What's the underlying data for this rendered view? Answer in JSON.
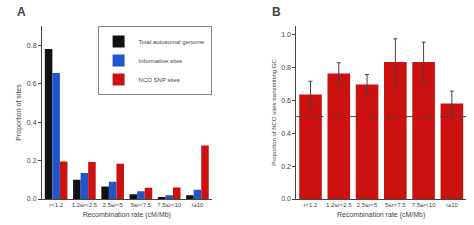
{
  "chart_data": [
    {
      "type": "bar",
      "annotations": [
        "A"
      ],
      "categories": [
        "r<1.2",
        "1.2≤r<2.5",
        "2.5≤r<5",
        "5≤r<7.5",
        "7.5≤r<10",
        "r≥10"
      ],
      "series": [
        {
          "name": "Total autosomal genome",
          "color": "#111111",
          "values": [
            0.78,
            0.1,
            0.065,
            0.025,
            0.01,
            0.02
          ]
        },
        {
          "name": "Informative sites",
          "color": "#2255cc",
          "values": [
            0.655,
            0.135,
            0.09,
            0.04,
            0.02,
            0.048
          ]
        },
        {
          "name": "NCO SNP sites",
          "color": "#cc1111",
          "values": [
            0.195,
            0.193,
            0.183,
            0.058,
            0.06,
            0.278
          ]
        }
      ],
      "xlabel": "Recombination rate (cM/Mb)",
      "ylabel": "Proportion of sites",
      "ylim": [
        0,
        0.9
      ],
      "yticks": [
        {
          "value": 0.0,
          "label": "0.0"
        },
        0.2,
        0.4,
        0.6,
        0.8
      ],
      "legend": "upper right",
      "grid": false
    },
    {
      "type": "bar",
      "annotations": [
        "B"
      ],
      "categories": [
        "r<1.2",
        "1.2≤r<2.5",
        "2.5≤r<5",
        "5≤r<7.5",
        "7.5≤r<10",
        "r≥10"
      ],
      "values": [
        0.635,
        0.762,
        0.695,
        0.832,
        0.832,
        0.58
      ],
      "errors": [
        0.08,
        0.065,
        0.06,
        0.14,
        0.12,
        0.075
      ],
      "color": "#cc1111",
      "hline": 0.5,
      "xlabel": "Recombination rate (cM/Mb)",
      "ylabel": "Proportion of NCO sites transmitting GC",
      "ylim": [
        0.0,
        1.05
      ],
      "yticks": [
        {
          "value": 0.0,
          "label": "0.0"
        },
        0.2,
        0.4,
        0.6,
        0.8,
        {
          "value": 1.0,
          "label": "1.0"
        }
      ],
      "grid": false
    }
  ]
}
